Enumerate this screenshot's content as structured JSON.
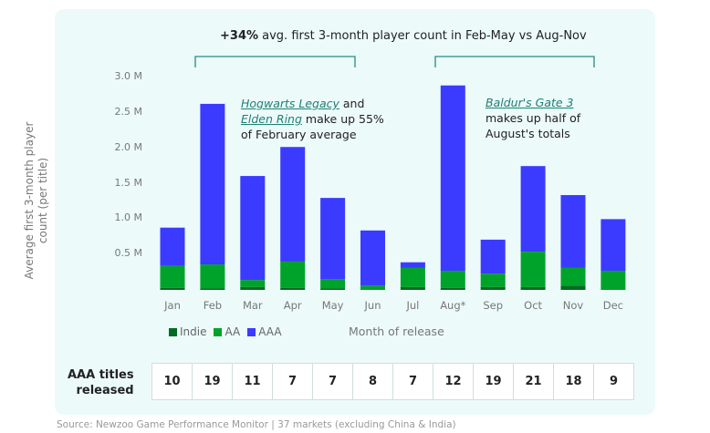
{
  "chart_data": {
    "type": "bar",
    "stacked": true,
    "headline_bold": "+34%",
    "headline": " avg. first 3-month player count in Feb-May vs Aug-Nov",
    "annotation1": {
      "link1": "Hogwarts Legacy",
      "t1": " and",
      "link2": "Elden Ring",
      "t2": " make up 55%",
      "t3": "of February average"
    },
    "annotation2": {
      "link": "Baldur's Gate 3",
      "t1": "makes up half of",
      "t2": "August's totals"
    },
    "ylabel": "Average first 3-month player count (per title)",
    "xlabel": "Month of release",
    "ylim": [
      0,
      3.0
    ],
    "yticks": [
      "3.0 M",
      "2.5 M",
      "2.0 M",
      "1.5 M",
      "1.0 M",
      "0.5 M"
    ],
    "ytick_values": [
      3.0,
      2.5,
      2.0,
      1.5,
      1.0,
      0.5
    ],
    "categories": [
      "Jan",
      "Feb",
      "Mar",
      "Apr",
      "May",
      "Jun",
      "Jul",
      "Aug*",
      "Sep",
      "Oct",
      "Nov",
      "Dec"
    ],
    "series": [
      {
        "name": "Indie",
        "color": "#006b1e",
        "values": [
          0.03,
          0.02,
          0.04,
          0.03,
          0.02,
          0.01,
          0.04,
          0.03,
          0.04,
          0.04,
          0.06,
          0.01
        ]
      },
      {
        "name": "AA",
        "color": "#00a32a",
        "values": [
          0.31,
          0.34,
          0.1,
          0.37,
          0.13,
          0.05,
          0.27,
          0.24,
          0.19,
          0.5,
          0.25,
          0.26
        ]
      },
      {
        "name": "AAA",
        "color": "#3b3bff",
        "values": [
          0.54,
          2.27,
          1.47,
          1.62,
          1.15,
          0.78,
          0.08,
          2.62,
          0.48,
          1.21,
          1.03,
          0.73
        ]
      }
    ],
    "units": "M"
  },
  "table": {
    "label_line1": "AAA titles",
    "label_line2": "released",
    "values": [
      "10",
      "19",
      "11",
      "7",
      "7",
      "8",
      "7",
      "12",
      "19",
      "21",
      "18",
      "9"
    ]
  },
  "source": "Source: Newzoo Game Performance Monitor | 37 markets (excluding China & India)"
}
